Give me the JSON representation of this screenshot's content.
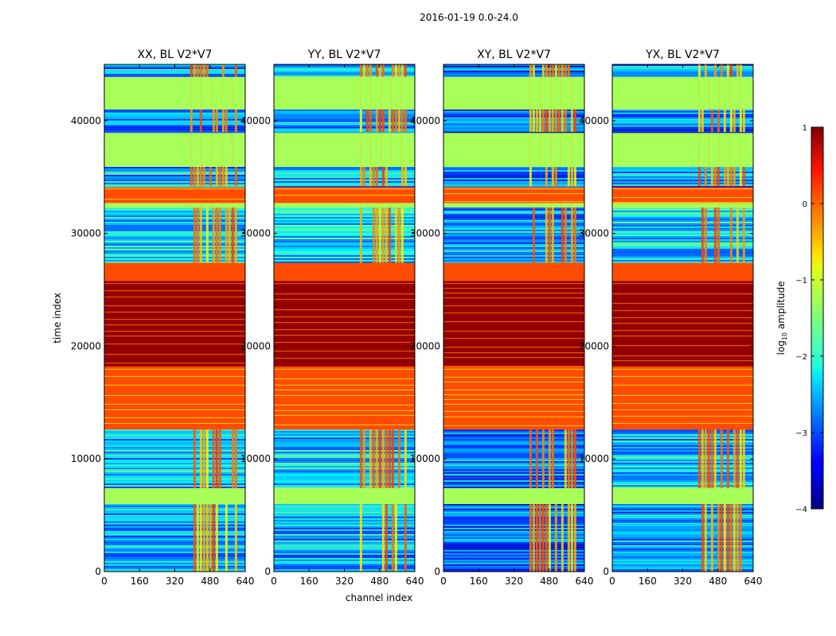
{
  "figure": {
    "suptitle": "2016-01-19 0.0-24.0",
    "xlabel": "channel index",
    "ylabel": "time index"
  },
  "colorbar": {
    "label_prefix": "log",
    "label_sub": "10",
    "label_suffix": " amplitude",
    "ticks": [
      1,
      0,
      -1,
      -2,
      -3,
      -4
    ],
    "tick_labels": [
      "1",
      "0",
      "−1",
      "−2",
      "−3",
      "−4"
    ],
    "range": [
      -4,
      1
    ],
    "colormap": "jet"
  },
  "chart_data": {
    "type": "heatmap",
    "title": "2016-01-19 0.0-24.0",
    "xlabel": "channel index",
    "ylabel": "time index",
    "xlim": [
      0,
      640
    ],
    "ylim": [
      0,
      45000
    ],
    "xticks": [
      0,
      160,
      320,
      480,
      640
    ],
    "yticks": [
      0,
      10000,
      20000,
      30000,
      40000
    ],
    "colorbar_range": [
      -4,
      1
    ],
    "panels": [
      {
        "title": "XX, BL V2*V7"
      },
      {
        "title": "YY, BL V2*V7"
      },
      {
        "title": "XY, BL V2*V7"
      },
      {
        "title": "YX, BL V2*V7"
      }
    ],
    "time_bands": [
      {
        "from": 0,
        "to": 6000,
        "level": -2.6,
        "kind": "noisy"
      },
      {
        "from": 6000,
        "to": 7400,
        "level": -1.3,
        "kind": "flat"
      },
      {
        "from": 7400,
        "to": 12600,
        "level": -2.4,
        "kind": "noisy"
      },
      {
        "from": 12600,
        "to": 18200,
        "level": 0,
        "kind": "striped"
      },
      {
        "from": 18200,
        "to": 25800,
        "level": 0.9,
        "kind": "striped"
      },
      {
        "from": 25800,
        "to": 27400,
        "level": 0,
        "kind": "flat"
      },
      {
        "from": 27400,
        "to": 32300,
        "level": -2.3,
        "kind": "noisy"
      },
      {
        "from": 32300,
        "to": 32700,
        "level": -1.3,
        "kind": "flat"
      },
      {
        "from": 32700,
        "to": 34200,
        "level": 0,
        "kind": "striped"
      },
      {
        "from": 34200,
        "to": 35900,
        "level": -2.5,
        "kind": "noisy"
      },
      {
        "from": 35900,
        "to": 37300,
        "level": -1.3,
        "kind": "flat"
      },
      {
        "from": 37300,
        "to": 39000,
        "level": -1.3,
        "kind": "flat"
      },
      {
        "from": 39000,
        "to": 41000,
        "level": -2.7,
        "kind": "noisy"
      },
      {
        "from": 41000,
        "to": 43900,
        "level": -1.3,
        "kind": "flat"
      },
      {
        "from": 43900,
        "to": 45000,
        "level": -2.6,
        "kind": "noisy"
      }
    ],
    "rfi_channel_ranges": [
      [
        390,
        600
      ]
    ]
  }
}
